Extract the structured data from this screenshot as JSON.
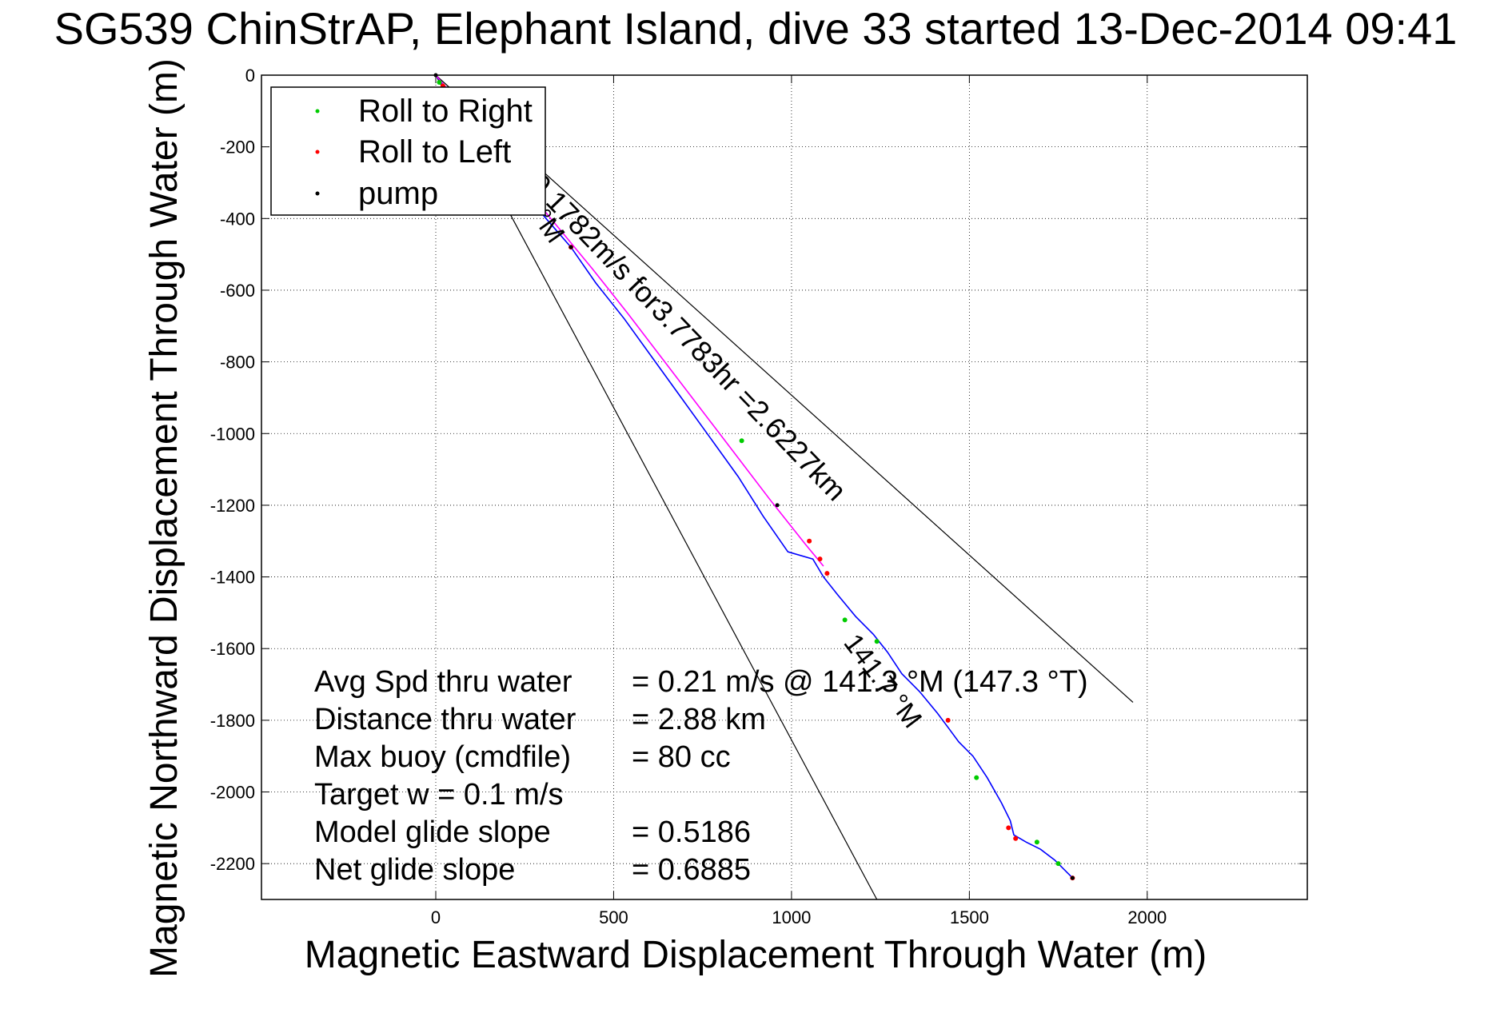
{
  "chart_data": {
    "type": "line",
    "title": "SG539 ChinStrAP, Elephant Island, dive 33 started 13-Dec-2014 09:41",
    "xlabel": "Magnetic Eastward Displacement Through Water (m)",
    "ylabel": "Magnetic Northward Displacement Through Water (m)",
    "xlim": [
      -490,
      2450
    ],
    "ylim": [
      -2300,
      0
    ],
    "xticks": [
      0,
      500,
      1000,
      1500,
      2000
    ],
    "yticks": [
      0,
      -200,
      -400,
      -600,
      -800,
      -1000,
      -1200,
      -1400,
      -1600,
      -1800,
      -2000,
      -2200
    ],
    "grid": true,
    "legend_position": "top-left",
    "legend": [
      {
        "label": "Roll to Right",
        "color": "#00cc00"
      },
      {
        "label": "Roll to Left",
        "color": "#ff0000"
      },
      {
        "label": "pump",
        "color": "#000000"
      }
    ],
    "series": [
      {
        "color": "#0000ff",
        "x": [
          0,
          30,
          80,
          150,
          230,
          310,
          380,
          450,
          530,
          610,
          690,
          770,
          850,
          920,
          990,
          1060,
          1090,
          1130,
          1180,
          1230,
          1270,
          1310,
          1360,
          1410,
          1440,
          1470,
          1510,
          1550,
          1590,
          1615,
          1625,
          1660,
          1700,
          1740,
          1790
        ],
        "y": [
          0,
          -40,
          -110,
          -200,
          -305,
          -400,
          -480,
          -580,
          -680,
          -790,
          -900,
          -1010,
          -1120,
          -1230,
          -1330,
          -1350,
          -1400,
          -1450,
          -1510,
          -1560,
          -1610,
          -1670,
          -1720,
          -1780,
          -1820,
          -1860,
          -1900,
          -1960,
          -2030,
          -2080,
          -2120,
          -2140,
          -2160,
          -2190,
          -2240
        ]
      },
      {
        "color": "#ff00ff",
        "x": [
          0,
          60,
          140,
          240,
          340,
          440,
          540,
          640,
          740,
          840,
          940,
          1040,
          1090
        ],
        "y": [
          0,
          -70,
          -170,
          -300,
          -420,
          -540,
          -665,
          -795,
          -925,
          -1055,
          -1185,
          -1310,
          -1370
        ]
      }
    ],
    "roll_right_points": [
      [
        10,
        -20
      ],
      [
        220,
        -300
      ],
      [
        860,
        -1020
      ],
      [
        1150,
        -1520
      ],
      [
        1240,
        -1580
      ],
      [
        1520,
        -1960
      ],
      [
        1690,
        -2140
      ],
      [
        1750,
        -2200
      ]
    ],
    "roll_left_points": [
      [
        20,
        -30
      ],
      [
        260,
        -330
      ],
      [
        380,
        -480
      ],
      [
        1050,
        -1300
      ],
      [
        1080,
        -1350
      ],
      [
        1100,
        -1390
      ],
      [
        1440,
        -1800
      ],
      [
        1610,
        -2100
      ],
      [
        1630,
        -2130
      ],
      [
        1790,
        -2240
      ]
    ],
    "pump_points": [
      [
        0,
        0
      ],
      [
        380,
        -480
      ],
      [
        960,
        -1200
      ],
      [
        1790,
        -2240
      ]
    ],
    "guide_lines": [
      {
        "label": "147.7 °M",
        "from": [
          0,
          0
        ],
        "to": [
          1240,
          -2300
        ]
      },
      {
        "label": "",
        "from": [
          0,
          0
        ],
        "to": [
          1960,
          -1750
        ]
      }
    ],
    "annotations": {
      "track": "0.1782m/s for3.7783hr =2.6227km",
      "left_heading": "°M",
      "right_heading": "141.7 °M"
    },
    "stats": [
      {
        "label": "Avg Spd thru water",
        "value": "=  0.21 m/s @ 141.3 °M (147.3 °T)"
      },
      {
        "label": "Distance thru water",
        "value": "=  2.88 km"
      },
      {
        "label": "Max buoy (cmdfile)",
        "value": "= 80 cc"
      },
      {
        "label": "Target w    = 0.1 m/s",
        "value": ""
      },
      {
        "label": "Model glide slope",
        "value": "= 0.5186"
      },
      {
        "label": "Net glide slope",
        "value": "= 0.6885"
      }
    ]
  }
}
